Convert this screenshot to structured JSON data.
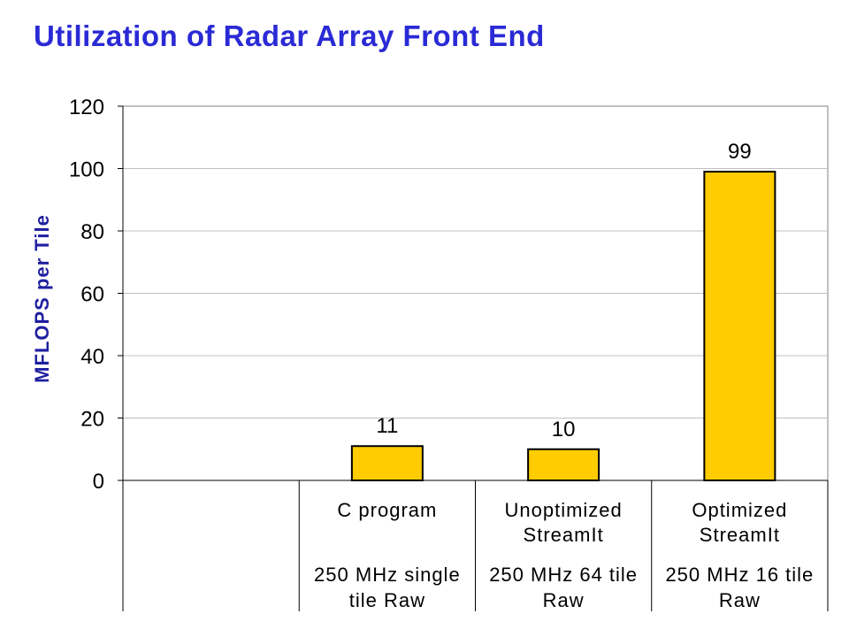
{
  "title": "Utilization of Radar Array Front End",
  "colors": {
    "title": "#2a2ad6",
    "bar": "#ffcc00",
    "bar_stroke": "#000000",
    "grid": "#c0c0c0",
    "axis": "#000000",
    "ylabel": "#1f1fa0"
  },
  "chart_data": {
    "type": "bar",
    "title": "Utilization of Radar Array Front End",
    "ylabel": "MFLOPS per Tile",
    "xlabel": "",
    "ylim": [
      0,
      120
    ],
    "yticks": [
      0,
      20,
      40,
      60,
      80,
      100,
      120
    ],
    "grid": true,
    "categories": [
      {
        "line1": "",
        "line2": "",
        "line3": "",
        "line4": ""
      },
      {
        "line1": "C program",
        "line2": "",
        "line3": "250 MHz single",
        "line4": "tile Raw"
      },
      {
        "line1": "Unoptimized",
        "line2": "StreamIt",
        "line3": "250 MHz 64 tile",
        "line4": "Raw"
      },
      {
        "line1": "Optimized",
        "line2": "StreamIt",
        "line3": "250 MHz 16 tile",
        "line4": "Raw"
      }
    ],
    "values": [
      null,
      11,
      10,
      99
    ],
    "data_labels": [
      "",
      "11",
      "10",
      "99"
    ]
  }
}
